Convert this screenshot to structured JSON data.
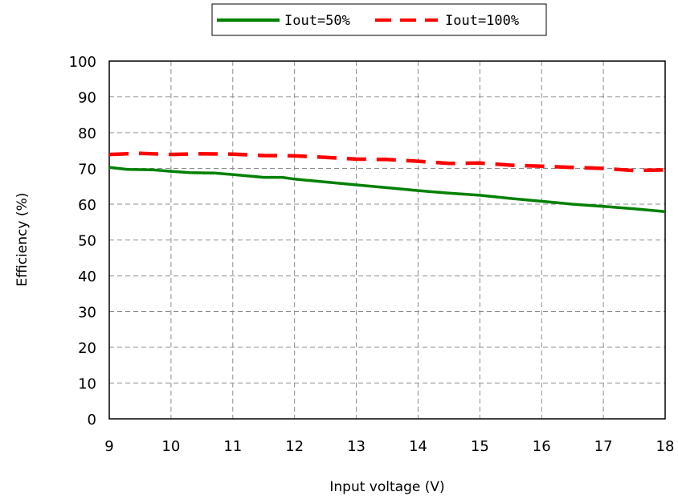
{
  "chart_data": {
    "type": "line",
    "xlabel": "Input voltage (V)",
    "ylabel": "Efficiency (%)",
    "xlim": [
      9,
      18
    ],
    "ylim": [
      0,
      100
    ],
    "xticks": [
      "9",
      "10",
      "11",
      "12",
      "13",
      "14",
      "15",
      "16",
      "17",
      "18"
    ],
    "yticks": [
      "0",
      "10",
      "20",
      "30",
      "40",
      "50",
      "60",
      "70",
      "80",
      "90",
      "100"
    ],
    "grid": true,
    "legend_position": "top",
    "series": [
      {
        "name": "Iout=50%",
        "color": "#008000",
        "style": "solid",
        "x": [
          9,
          9.3,
          9.7,
          10,
          10.3,
          10.7,
          11,
          11.5,
          11.8,
          12,
          12.5,
          13,
          13.5,
          14,
          14.5,
          15,
          15.5,
          16,
          16.5,
          17,
          17.5,
          18
        ],
        "y": [
          70.3,
          69.7,
          69.6,
          69.2,
          68.8,
          68.7,
          68.3,
          67.5,
          67.5,
          67.0,
          66.2,
          65.4,
          64.6,
          63.8,
          63.1,
          62.5,
          61.6,
          60.8,
          60.0,
          59.4,
          58.7,
          57.9
        ]
      },
      {
        "name": "Iout=100%",
        "color": "#ff0000",
        "style": "dashed",
        "x": [
          9,
          9.5,
          10,
          10.5,
          11,
          11.5,
          12,
          12.5,
          13,
          13.5,
          14,
          14.5,
          15,
          15.5,
          16,
          16.5,
          17,
          17.5,
          18
        ],
        "y": [
          73.9,
          74.2,
          73.9,
          74.1,
          74.0,
          73.6,
          73.5,
          73.1,
          72.6,
          72.5,
          72.0,
          71.4,
          71.5,
          70.9,
          70.6,
          70.3,
          70.0,
          69.4,
          69.6
        ]
      }
    ]
  }
}
